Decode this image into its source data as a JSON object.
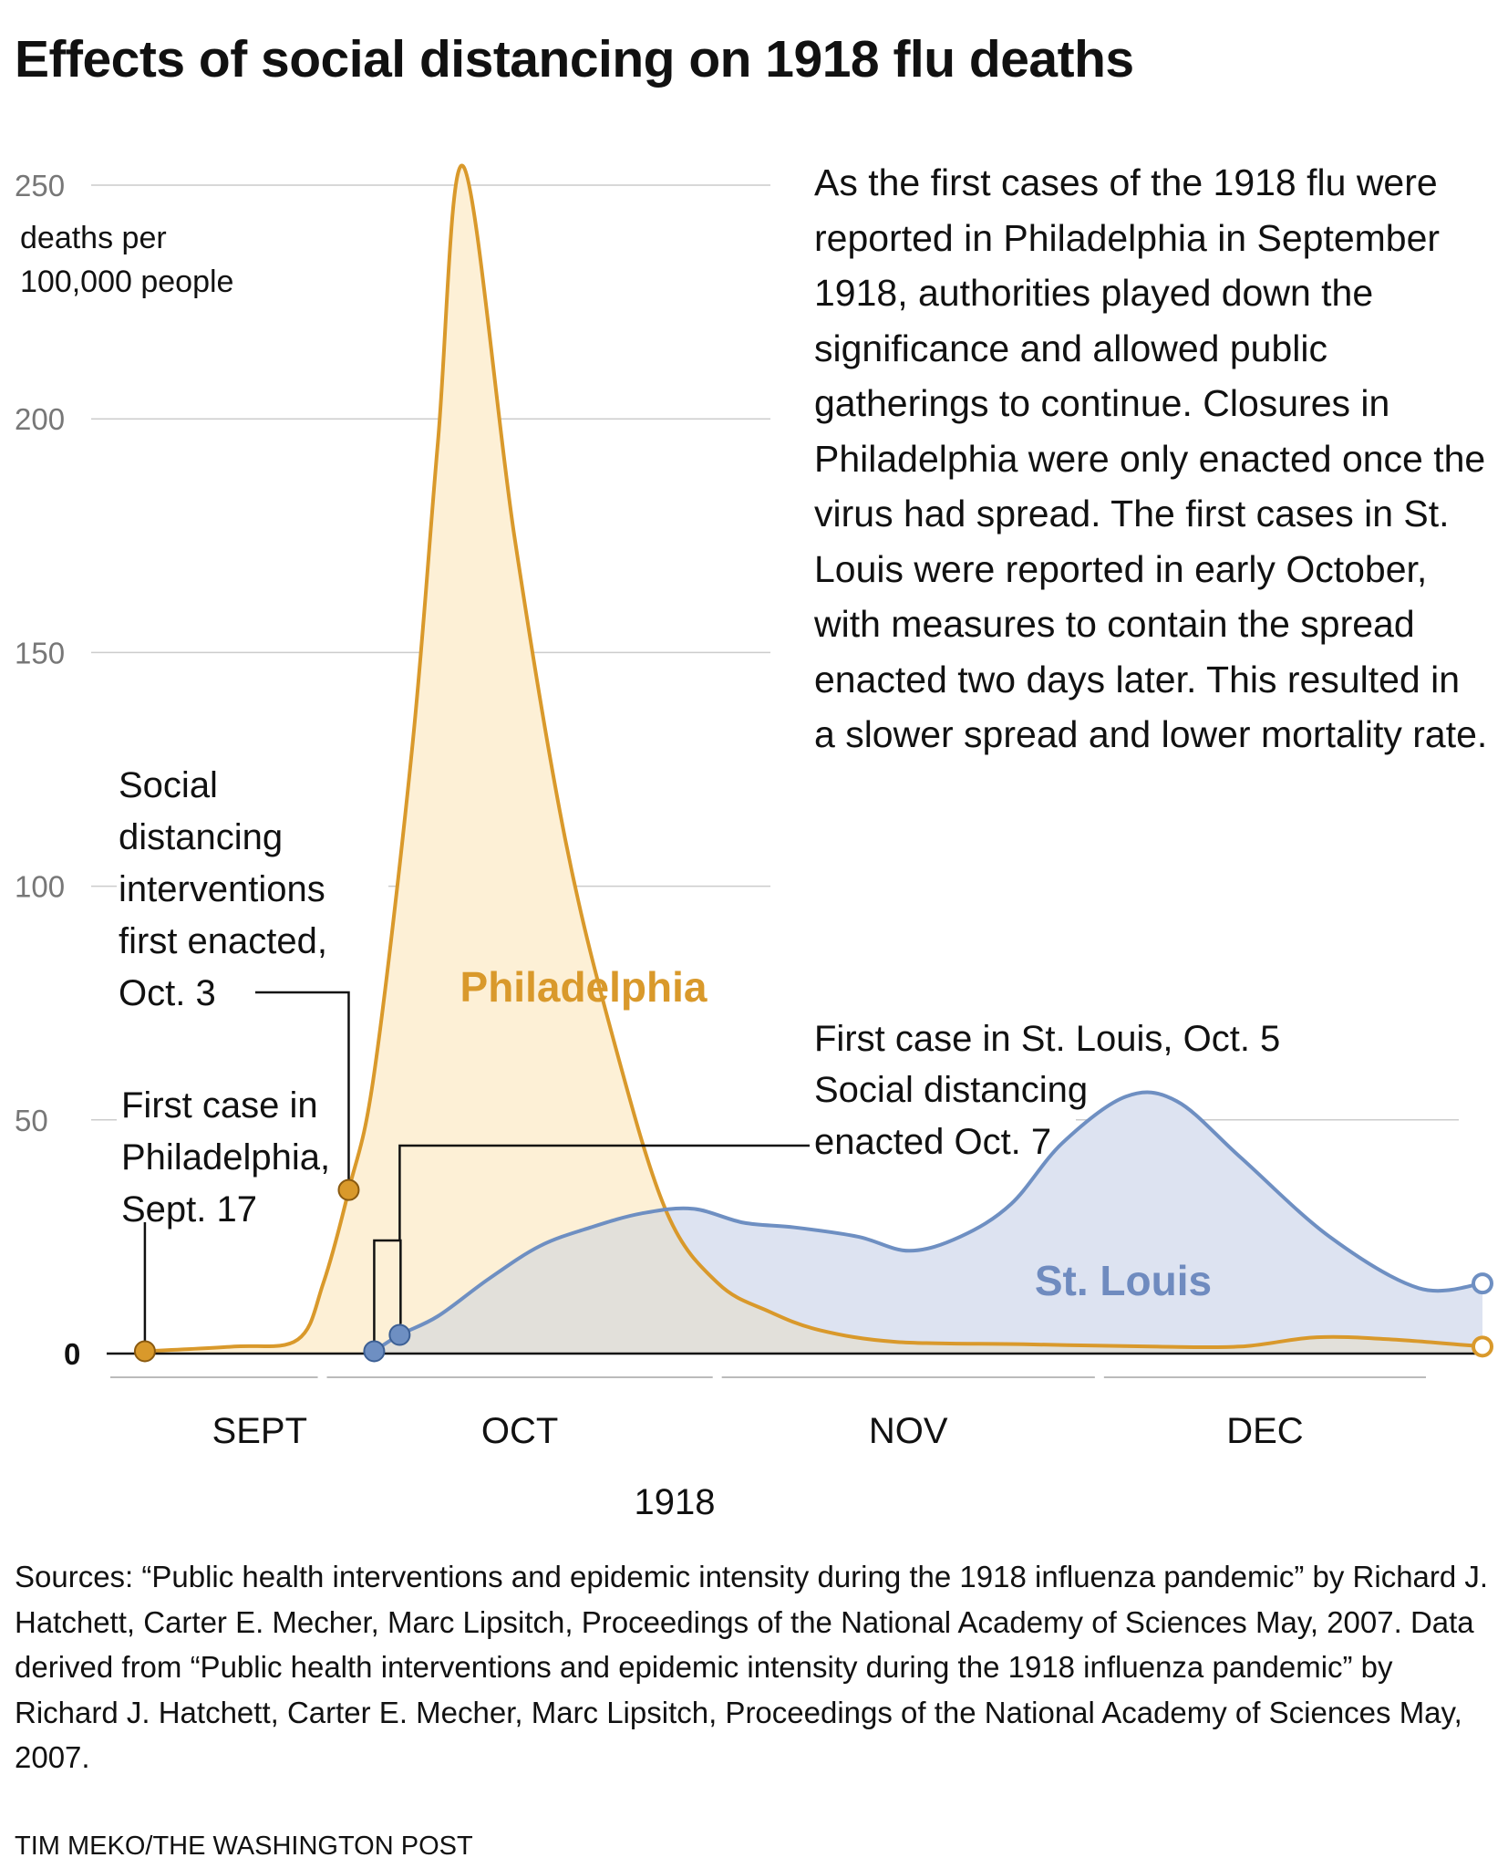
{
  "title": "Effects of social distancing on 1918 flu deaths",
  "note": "As the first cases of the 1918 flu were reported in Philadelphia in September 1918, authorities played down the significance and allowed public gatherings to continue. Closures in Philadelphia were only enacted once the virus had spread. The first cases in St. Louis were reported in early October, with measures to contain the spread enacted two days later. This resulted in a slower spread and lower mortality rate.",
  "sources": "Sources: “Public health interventions and epidemic intensity during the 1918 influenza pandemic” by Richard J. Hatchett, Carter E. Mecher, Marc Lipsitch, Proceedings of the National Academy of Sciences May, 2007. Data derived from “Public health interventions and epidemic intensity during the 1918 influenza pandemic” by Richard J. Hatchett, Carter E. Mecher, Marc Lipsitch, Proceedings of the National Academy of Sciences May, 2007.",
  "credit": "TIM MEKO/THE WASHINGTON POST",
  "colors": {
    "philadelphia": "#d9992b",
    "philadelphia_fill": "#fdf0d6",
    "stlouis": "#6e8fc2",
    "stlouis_fill": "#dde3f1",
    "overlap_fill": "#e2e0da",
    "grid": "#cccccc",
    "axis": "#111111"
  },
  "chart_data": {
    "type": "area",
    "title": "Effects of social distancing on 1918 flu deaths",
    "xlabel": "1918",
    "ylabel": "deaths per 100,000 people",
    "x_range": [
      "1918-09-14",
      "1918-12-31"
    ],
    "ylim": [
      0,
      255
    ],
    "yticks": [
      0,
      50,
      100,
      150,
      200,
      250
    ],
    "months": [
      {
        "label": "SEPT",
        "start": "1918-09-01",
        "end": "1918-09-30"
      },
      {
        "label": "OCT",
        "start": "1918-10-01",
        "end": "1918-10-31"
      },
      {
        "label": "NOV",
        "start": "1918-11-01",
        "end": "1918-11-30"
      },
      {
        "label": "DEC",
        "start": "1918-12-01",
        "end": "1918-12-31"
      }
    ],
    "grid": true,
    "series": [
      {
        "name": "Philadelphia",
        "points": [
          [
            "1918-09-17",
            0.5
          ],
          [
            "1918-09-24",
            1.5
          ],
          [
            "1918-09-29",
            3
          ],
          [
            "1918-10-01",
            15
          ],
          [
            "1918-10-03",
            35
          ],
          [
            "1918-10-05",
            60
          ],
          [
            "1918-10-08",
            130
          ],
          [
            "1918-10-10",
            195
          ],
          [
            "1918-10-12",
            254
          ],
          [
            "1918-10-16",
            175
          ],
          [
            "1918-10-20",
            110
          ],
          [
            "1918-10-24",
            65
          ],
          [
            "1918-10-28",
            30
          ],
          [
            "1918-11-01",
            15
          ],
          [
            "1918-11-05",
            9
          ],
          [
            "1918-11-09",
            5
          ],
          [
            "1918-11-15",
            2.5
          ],
          [
            "1918-11-25",
            2
          ],
          [
            "1918-12-05",
            1.5
          ],
          [
            "1918-12-12",
            1.5
          ],
          [
            "1918-12-18",
            3.5
          ],
          [
            "1918-12-24",
            3
          ],
          [
            "1918-12-31",
            1.5
          ]
        ]
      },
      {
        "name": "St. Louis",
        "points": [
          [
            "1918-10-05",
            0.5
          ],
          [
            "1918-10-07",
            4
          ],
          [
            "1918-10-10",
            8
          ],
          [
            "1918-10-14",
            16
          ],
          [
            "1918-10-18",
            23
          ],
          [
            "1918-10-22",
            27
          ],
          [
            "1918-10-26",
            30
          ],
          [
            "1918-10-30",
            31
          ],
          [
            "1918-11-03",
            28
          ],
          [
            "1918-11-07",
            27
          ],
          [
            "1918-11-12",
            25
          ],
          [
            "1918-11-16",
            22
          ],
          [
            "1918-11-20",
            25
          ],
          [
            "1918-11-24",
            32
          ],
          [
            "1918-11-28",
            45
          ],
          [
            "1918-12-03",
            55
          ],
          [
            "1918-12-07",
            54
          ],
          [
            "1918-12-12",
            42
          ],
          [
            "1918-12-19",
            25
          ],
          [
            "1918-12-26",
            14
          ]
        ]
      }
    ],
    "markers": [
      {
        "series": "Philadelphia",
        "date": "1918-09-17",
        "value": 0.5,
        "style": "filled"
      },
      {
        "series": "Philadelphia",
        "date": "1918-10-03",
        "value": 35,
        "style": "filled"
      },
      {
        "series": "Philadelphia",
        "date": "1918-12-31",
        "value": 1.5,
        "style": "open"
      },
      {
        "series": "St. Louis",
        "date": "1918-10-05",
        "value": 0.5,
        "style": "filled"
      },
      {
        "series": "St. Louis",
        "date": "1918-10-07",
        "value": 4,
        "style": "filled"
      },
      {
        "series": "St. Louis",
        "date": "1918-12-31",
        "value": 15,
        "style": "open"
      }
    ],
    "annotations": {
      "phila_intervention": [
        "Social",
        "distancing",
        "interventions",
        "first enacted,",
        "Oct. 3"
      ],
      "phila_first_case": [
        "First case in",
        "Philadelphia,",
        "Sept. 17"
      ],
      "stl_first_case": "First case in St. Louis, Oct. 5",
      "stl_intervention": [
        "Social distancing",
        "enacted Oct. 7"
      ]
    }
  }
}
